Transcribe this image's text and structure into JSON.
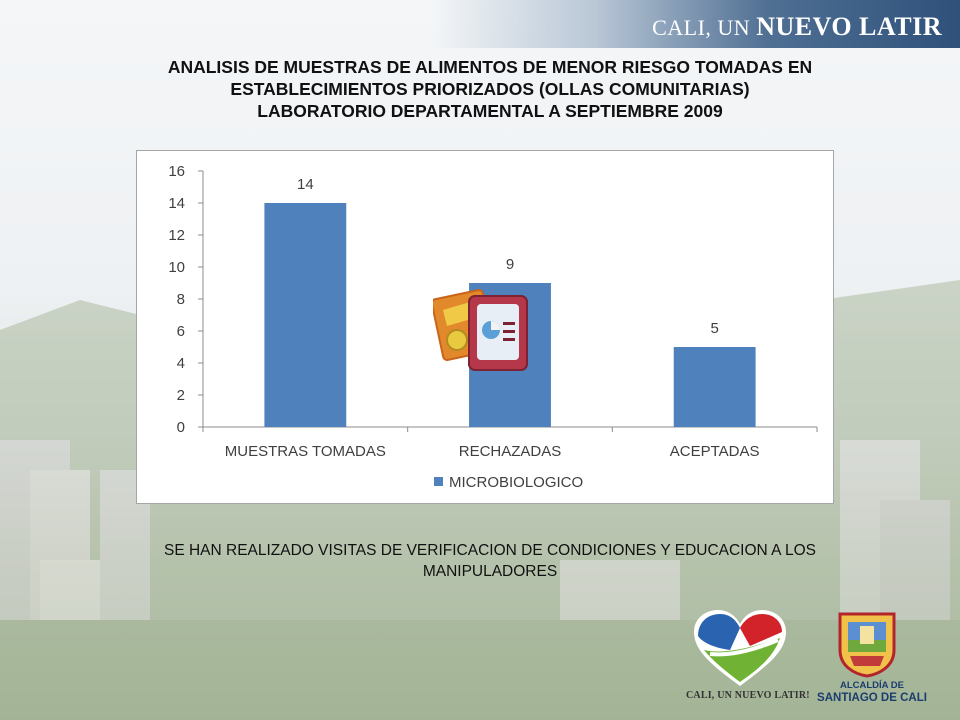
{
  "header": {
    "brand_prefix": "CALI, UN ",
    "brand_emph": "NUEVO LATIR"
  },
  "title": {
    "line1": "ANALISIS DE MUESTRAS DE ALIMENTOS DE MENOR RIESGO TOMADAS EN",
    "line2": "ESTABLECIMIENTOS PRIORIZADOS (OLLAS COMUNITARIAS)",
    "line3": "LABORATORIO DEPARTAMENTAL A SEPTIEMBRE 2009"
  },
  "chart_data": {
    "type": "bar",
    "categories": [
      "MUESTRAS TOMADAS",
      "RECHAZADAS",
      "ACEPTADAS"
    ],
    "series": [
      {
        "name": "MICROBIOLOGICO",
        "values": [
          14,
          9,
          5
        ],
        "color": "#4f81bd"
      }
    ],
    "data_labels": [
      "14",
      "9",
      "5"
    ],
    "y_ticks": [
      0,
      2,
      4,
      6,
      8,
      10,
      12,
      14,
      16
    ],
    "ylim": [
      0,
      16
    ],
    "grid": false,
    "legend_position": "bottom"
  },
  "note": {
    "line1": "SE HAN REALIZADO VISITAS DE VERIFICACION DE CONDICIONES Y EDUCACION A LOS",
    "line2": "MANIPULADORES"
  },
  "footer": {
    "heart_logo_text": "CALI, UN NUEVO LATIR!",
    "shield_line1": "ALCALDÍA DE",
    "shield_line2": "SANTIAGO DE CALI"
  },
  "colors": {
    "bar": "#4f81bd",
    "header_band": "#2f517a"
  }
}
